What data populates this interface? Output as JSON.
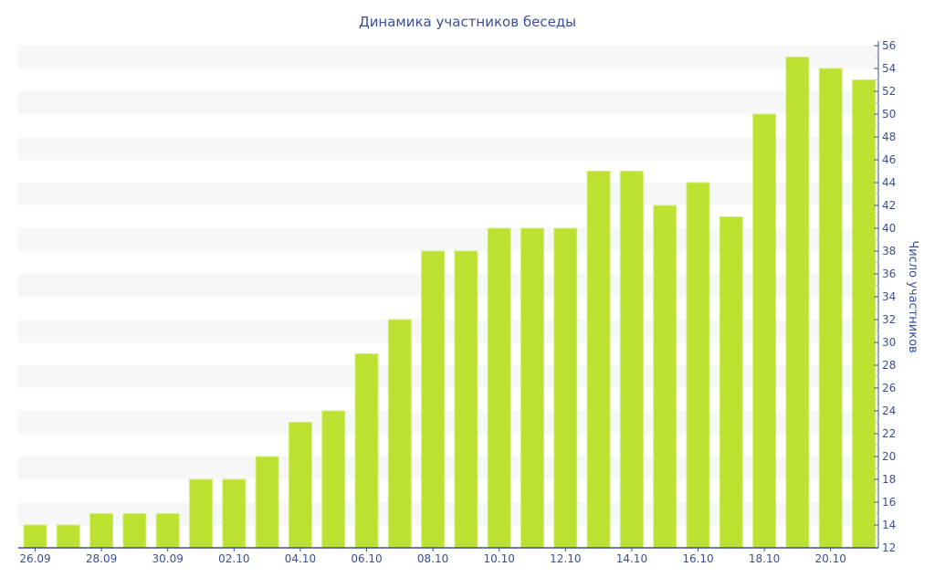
{
  "chart_data": {
    "type": "bar",
    "title": "Динамика участников беседы",
    "xlabel": "",
    "ylabel": "Число участников",
    "ylim": [
      12,
      56
    ],
    "yticks": [
      12,
      14,
      16,
      18,
      20,
      22,
      24,
      26,
      28,
      30,
      32,
      34,
      36,
      38,
      40,
      42,
      44,
      46,
      48,
      50,
      52,
      54,
      56
    ],
    "y_axis_side": "right",
    "grid": "alternating horizontal bands",
    "categories": [
      "26.09",
      "27.09",
      "28.09",
      "29.09",
      "30.09",
      "01.10",
      "02.10",
      "03.10",
      "04.10",
      "05.10",
      "06.10",
      "07.10",
      "08.10",
      "09.10",
      "10.10",
      "11.10",
      "12.10",
      "13.10",
      "14.10",
      "15.10",
      "16.10",
      "17.10",
      "18.10",
      "19.10",
      "20.10",
      "21.10"
    ],
    "xtick_labels": [
      "26.09",
      "28.09",
      "30.09",
      "02.10",
      "04.10",
      "06.10",
      "08.10",
      "10.10",
      "12.10",
      "14.10",
      "16.10",
      "18.10",
      "20.10"
    ],
    "values": [
      14,
      14,
      15,
      15,
      15,
      18,
      18,
      20,
      23,
      24,
      29,
      32,
      38,
      38,
      40,
      40,
      40,
      45,
      45,
      42,
      44,
      41,
      50,
      55,
      54,
      53
    ],
    "colors": {
      "bar": "#bce130",
      "axis": "#3a4f9a",
      "band": "#f7f7f7"
    }
  }
}
